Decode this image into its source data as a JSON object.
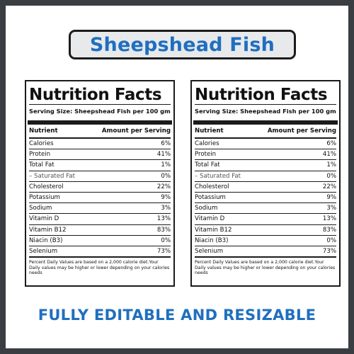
{
  "header": {
    "title": "Sheepshead Fish"
  },
  "label": {
    "heading": "Nutrition Facts",
    "serving": "Serving Size: Sheepshead Fish per 100 gm",
    "col_nutrient": "Nutrient",
    "col_amount": "Amount per Serving",
    "rows": [
      {
        "name": "Calories",
        "value": "6%"
      },
      {
        "name": "Protein",
        "value": "41%"
      },
      {
        "name": "Total Fat",
        "value": "1%"
      },
      {
        "name": "– Saturated Fat",
        "value": "0%"
      },
      {
        "name": "Cholesterol",
        "value": "22%"
      },
      {
        "name": "Potassium",
        "value": "9%"
      },
      {
        "name": "Sodium",
        "value": "3%"
      },
      {
        "name": "Vitamin D",
        "value": "13%"
      },
      {
        "name": "Vitamin B12",
        "value": "83%"
      },
      {
        "name": "Niacin (B3)",
        "value": "0%"
      },
      {
        "name": "Selenium",
        "value": "73%"
      }
    ],
    "footnote": "Percent Daily Values are based on a 2,000 calorie diet.Your Daily values may be higher or lower depending on your calories needs"
  },
  "footer": {
    "tagline": "FULLY EDITABLE AND RESIZABLE"
  },
  "colors": {
    "accent": "#1f6fbf",
    "frame": "#3a3d42",
    "pill_bg": "#e8e9eb"
  }
}
